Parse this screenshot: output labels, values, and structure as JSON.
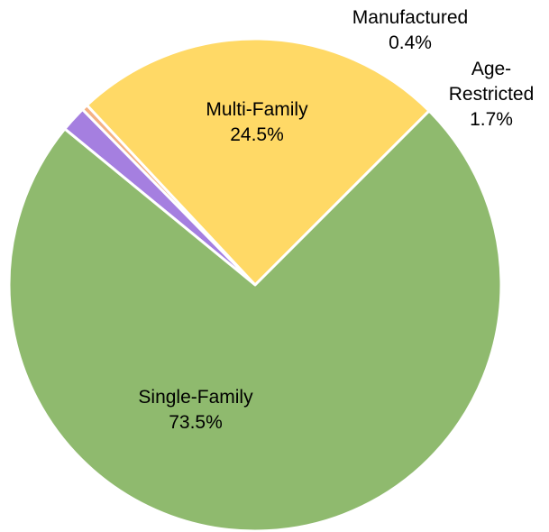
{
  "chart_data": {
    "type": "pie",
    "title": "",
    "slices": [
      {
        "label_lines": [
          "Multi-Family"
        ],
        "value_text": "24.5%",
        "value": 24.5,
        "color": "#FFD966"
      },
      {
        "label_lines": [
          "Manufactured"
        ],
        "value_text": "0.4%",
        "value": 0.4,
        "color": "#F4B183"
      },
      {
        "label_lines": [
          "Age-",
          "Restricted"
        ],
        "value_text": "1.7%",
        "value": 1.7,
        "color": "#A57FE0"
      },
      {
        "label_lines": [
          "Single-Family"
        ],
        "value_text": "73.5%",
        "value": 73.5,
        "color": "#8FBA6E"
      }
    ],
    "start_angle_deg": -45,
    "slice_border_color": "#ffffff"
  }
}
